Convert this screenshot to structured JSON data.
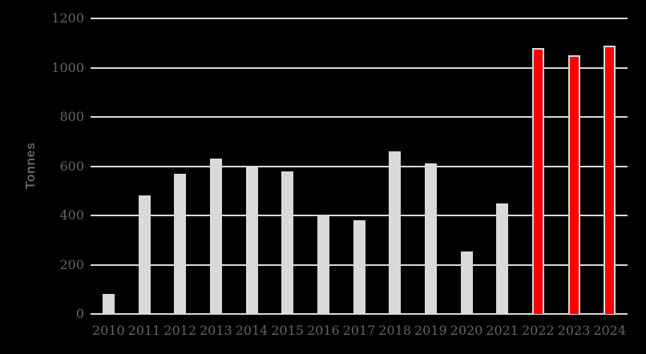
{
  "chart_data": {
    "type": "bar",
    "title": "",
    "xlabel": "",
    "ylabel": "Tonnes",
    "categories": [
      "2010",
      "2011",
      "2012",
      "2013",
      "2014",
      "2015",
      "2016",
      "2017",
      "2018",
      "2019",
      "2020",
      "2021",
      "2022",
      "2023",
      "2024"
    ],
    "values": [
      80,
      480,
      570,
      630,
      600,
      580,
      400,
      380,
      660,
      610,
      255,
      450,
      1080,
      1050,
      1090
    ],
    "bar_colors": [
      "#d9d9d9",
      "#d9d9d9",
      "#d9d9d9",
      "#d9d9d9",
      "#d9d9d9",
      "#d9d9d9",
      "#d9d9d9",
      "#d9d9d9",
      "#d9d9d9",
      "#d9d9d9",
      "#d9d9d9",
      "#d9d9d9",
      "#ff0000",
      "#ff0000",
      "#ff0000"
    ],
    "highlight_years": [
      "2022",
      "2023",
      "2024"
    ],
    "ylim": [
      0,
      1200
    ],
    "yticks": [
      0,
      200,
      400,
      600,
      800,
      1000,
      1200
    ],
    "grid": true,
    "legend_position": "none",
    "colors": {
      "background": "#000000",
      "gridline": "#d9d9d9",
      "default_bar": "#d9d9d9",
      "highlight_bar": "#ff0000",
      "highlight_outline": "#d9d9d9",
      "axis_text": "#646464"
    }
  }
}
